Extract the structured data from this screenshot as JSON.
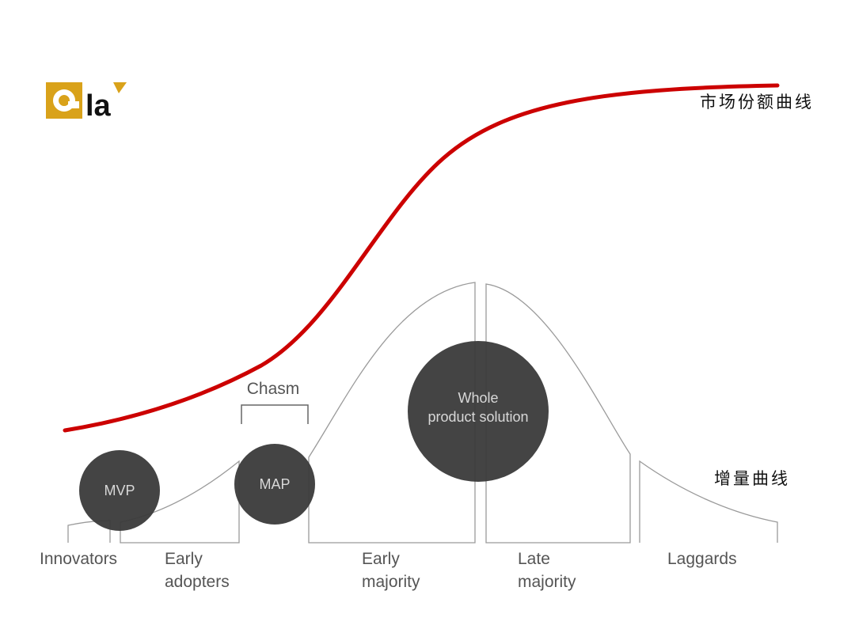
{
  "logo": {
    "text": "la"
  },
  "curves": {
    "market_share_label": "市场份额曲线",
    "increment_label": "增量曲线"
  },
  "chasm_label": "Chasm",
  "circles": {
    "mvp": "MVP",
    "map": "MAP",
    "whole_product_line1": "Whole",
    "whole_product_line2": "product solution"
  },
  "segments": [
    {
      "line1": "Innovators",
      "line2": ""
    },
    {
      "line1": "Early",
      "line2": "adopters"
    },
    {
      "line1": "Early",
      "line2": "majority"
    },
    {
      "line1": "Late",
      "line2": "majority"
    },
    {
      "line1": "Laggards",
      "line2": ""
    }
  ],
  "colors": {
    "accent_red": "#cc0000",
    "logo_gold": "#d9a21a",
    "circle_fill": "#3a3a3a",
    "bell_stroke": "#9a9a9a"
  }
}
